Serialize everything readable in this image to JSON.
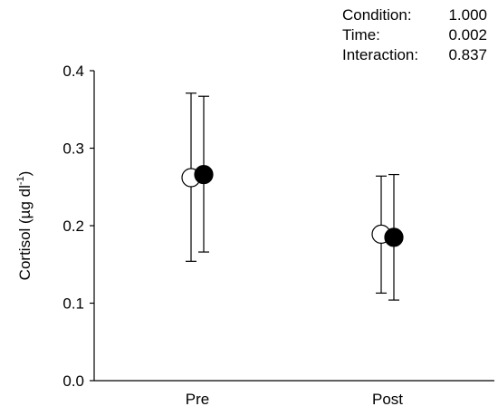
{
  "chart_data": {
    "type": "scatter",
    "categories": [
      "Pre",
      "Post"
    ],
    "ylabel": "Cortisol (µg dl",
    "ylabel_superscript": "-1",
    "ylabel_suffix": ")",
    "ylim": [
      0.0,
      0.4
    ],
    "yticks": [
      "0.0",
      "0.1",
      "0.2",
      "0.3",
      "0.4"
    ],
    "grid": false,
    "series": [
      {
        "marker": "open-circle",
        "color": "#ffffff",
        "values": [
          0.262,
          0.189
        ],
        "err_low": [
          0.154,
          0.113
        ],
        "err_high": [
          0.371,
          0.264
        ]
      },
      {
        "marker": "filled-circle",
        "color": "#000000",
        "values": [
          0.266,
          0.185
        ],
        "err_low": [
          0.166,
          0.104
        ],
        "err_high": [
          0.367,
          0.266
        ]
      }
    ],
    "annotations": [
      {
        "label": "Condition:",
        "value": "1.000"
      },
      {
        "label": "Time:",
        "value": "0.002"
      },
      {
        "label": "Interaction:",
        "value": "0.837"
      }
    ]
  }
}
